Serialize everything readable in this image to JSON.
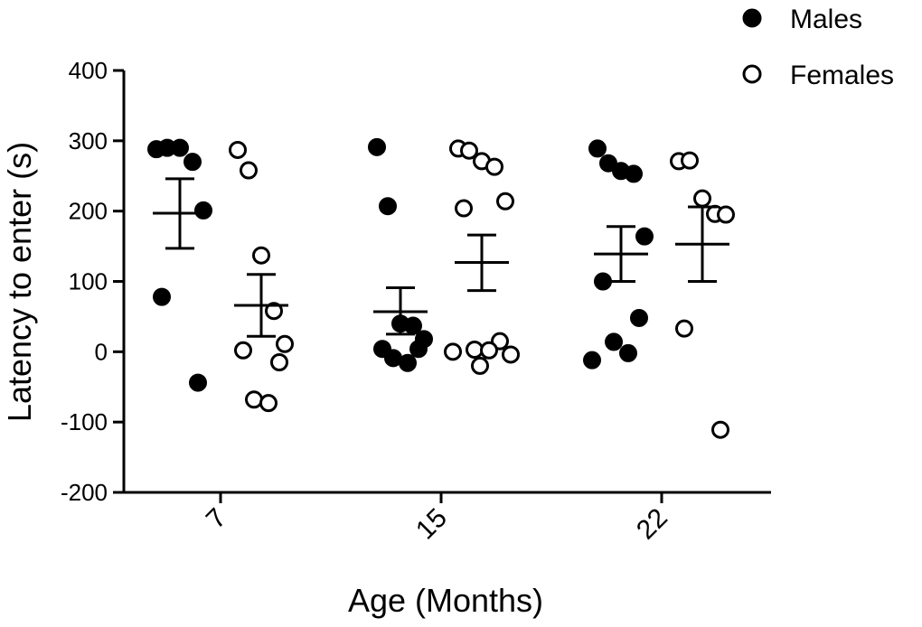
{
  "chart_data": {
    "type": "scatter",
    "title": "",
    "xlabel": "Age (Months)",
    "ylabel": "Latency to enter (s)",
    "ylim": [
      -200,
      400
    ],
    "yticks": [
      "-200",
      "-100",
      "0",
      "100",
      "200",
      "300",
      "400"
    ],
    "categories": [
      "7",
      "15",
      "22"
    ],
    "legend": {
      "placement": "top-right",
      "entries": [
        {
          "name": "Males",
          "marker": "filled-circle"
        },
        {
          "name": "Females",
          "marker": "open-circle"
        }
      ]
    },
    "series": [
      {
        "name": "Males",
        "marker": "filled",
        "groups": [
          {
            "category": "7",
            "mean": 197,
            "sem_low": 147,
            "sem_high": 246,
            "points": [
              288,
              290,
              290,
              270,
              201,
              78,
              -44
            ]
          },
          {
            "category": "15",
            "mean": 57,
            "sem_low": 25,
            "sem_high": 91,
            "points": [
              291,
              207,
              40,
              37,
              18,
              4,
              4,
              -9,
              -16
            ]
          },
          {
            "category": "22",
            "mean": 139,
            "sem_low": 100,
            "sem_high": 178,
            "points": [
              289,
              268,
              257,
              253,
              164,
              100,
              48,
              14,
              -2,
              -12
            ]
          }
        ]
      },
      {
        "name": "Females",
        "marker": "open",
        "groups": [
          {
            "category": "7",
            "mean": 66,
            "sem_low": 22,
            "sem_high": 110,
            "points": [
              287,
              258,
              137,
              58,
              11,
              2,
              -15,
              -68,
              -73
            ]
          },
          {
            "category": "15",
            "mean": 127,
            "sem_low": 87,
            "sem_high": 166,
            "points": [
              289,
              286,
              271,
              263,
              214,
              204,
              15,
              3,
              2,
              0,
              -4,
              -20
            ]
          },
          {
            "category": "22",
            "mean": 153,
            "sem_low": 100,
            "sem_high": 206,
            "points": [
              271,
              272,
              218,
              196,
              195,
              33,
              -111
            ]
          }
        ]
      }
    ]
  }
}
